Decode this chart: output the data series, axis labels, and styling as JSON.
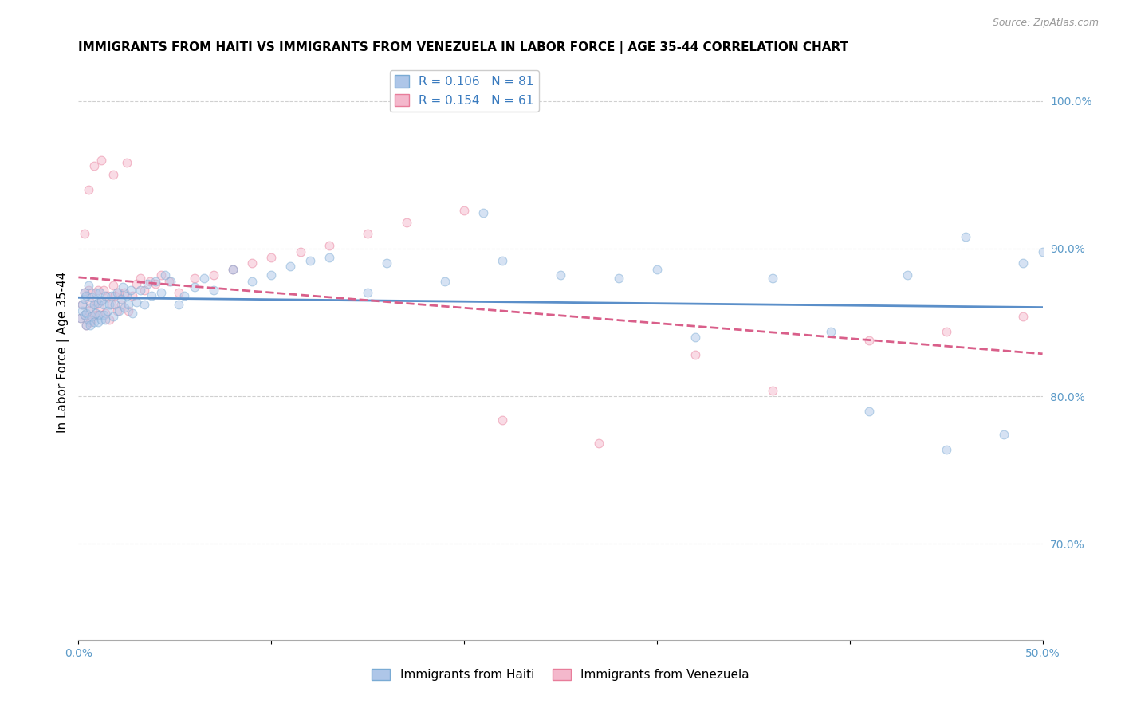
{
  "title": "IMMIGRANTS FROM HAITI VS IMMIGRANTS FROM VENEZUELA IN LABOR FORCE | AGE 35-44 CORRELATION CHART",
  "source": "Source: ZipAtlas.com",
  "ylabel": "In Labor Force | Age 35-44",
  "xlim": [
    0.0,
    0.5
  ],
  "ylim": [
    0.635,
    1.025
  ],
  "x_ticks": [
    0.0,
    0.1,
    0.2,
    0.3,
    0.4,
    0.5
  ],
  "x_tick_labels": [
    "0.0%",
    "",
    "",
    "",
    "",
    "50.0%"
  ],
  "y_ticks_right": [
    1.0,
    0.9,
    0.8,
    0.7
  ],
  "y_tick_labels_right": [
    "100.0%",
    "90.0%",
    "80.0%",
    "70.0%"
  ],
  "haiti_color": "#aec6e8",
  "haiti_edge_color": "#7aabd4",
  "venezuela_color": "#f4b8cc",
  "venezuela_edge_color": "#e87d9a",
  "line_haiti_color": "#5b8fc9",
  "line_venezuela_color": "#d95f8a",
  "R_haiti": 0.106,
  "N_haiti": 81,
  "R_venezuela": 0.154,
  "N_venezuela": 61,
  "legend_label_haiti": "Immigrants from Haiti",
  "legend_label_venezuela": "Immigrants from Venezuela",
  "haiti_x": [
    0.001,
    0.002,
    0.002,
    0.003,
    0.003,
    0.003,
    0.004,
    0.004,
    0.004,
    0.005,
    0.005,
    0.006,
    0.006,
    0.007,
    0.007,
    0.008,
    0.008,
    0.009,
    0.009,
    0.01,
    0.01,
    0.011,
    0.011,
    0.012,
    0.012,
    0.013,
    0.013,
    0.014,
    0.014,
    0.015,
    0.016,
    0.017,
    0.018,
    0.019,
    0.02,
    0.021,
    0.022,
    0.023,
    0.024,
    0.025,
    0.026,
    0.027,
    0.028,
    0.03,
    0.032,
    0.034,
    0.036,
    0.038,
    0.04,
    0.043,
    0.045,
    0.048,
    0.052,
    0.055,
    0.06,
    0.065,
    0.07,
    0.08,
    0.09,
    0.1,
    0.11,
    0.12,
    0.13,
    0.15,
    0.16,
    0.19,
    0.21,
    0.22,
    0.25,
    0.28,
    0.3,
    0.32,
    0.36,
    0.39,
    0.41,
    0.43,
    0.45,
    0.46,
    0.48,
    0.49,
    0.5
  ],
  "haiti_y": [
    0.853,
    0.858,
    0.862,
    0.855,
    0.866,
    0.87,
    0.848,
    0.856,
    0.868,
    0.852,
    0.875,
    0.848,
    0.86,
    0.854,
    0.867,
    0.85,
    0.862,
    0.856,
    0.87,
    0.85,
    0.863,
    0.855,
    0.87,
    0.852,
    0.865,
    0.855,
    0.862,
    0.852,
    0.868,
    0.858,
    0.862,
    0.868,
    0.854,
    0.862,
    0.87,
    0.858,
    0.866,
    0.874,
    0.86,
    0.868,
    0.862,
    0.872,
    0.856,
    0.864,
    0.872,
    0.862,
    0.876,
    0.868,
    0.878,
    0.87,
    0.882,
    0.878,
    0.862,
    0.868,
    0.874,
    0.88,
    0.872,
    0.886,
    0.878,
    0.882,
    0.888,
    0.892,
    0.894,
    0.87,
    0.89,
    0.878,
    0.924,
    0.892,
    0.882,
    0.88,
    0.886,
    0.84,
    0.88,
    0.844,
    0.79,
    0.882,
    0.764,
    0.908,
    0.774,
    0.89,
    0.898
  ],
  "venezuela_x": [
    0.001,
    0.002,
    0.003,
    0.003,
    0.004,
    0.005,
    0.005,
    0.006,
    0.006,
    0.007,
    0.007,
    0.008,
    0.009,
    0.01,
    0.01,
    0.011,
    0.012,
    0.013,
    0.014,
    0.015,
    0.016,
    0.017,
    0.018,
    0.019,
    0.02,
    0.021,
    0.022,
    0.024,
    0.026,
    0.028,
    0.03,
    0.032,
    0.034,
    0.037,
    0.04,
    0.043,
    0.047,
    0.052,
    0.06,
    0.07,
    0.08,
    0.09,
    0.1,
    0.115,
    0.13,
    0.15,
    0.17,
    0.2,
    0.22,
    0.27,
    0.32,
    0.36,
    0.41,
    0.45,
    0.49,
    0.003,
    0.005,
    0.008,
    0.012,
    0.018,
    0.025
  ],
  "venezuela_y": [
    0.853,
    0.862,
    0.855,
    0.87,
    0.848,
    0.858,
    0.872,
    0.85,
    0.864,
    0.852,
    0.87,
    0.855,
    0.862,
    0.855,
    0.872,
    0.86,
    0.865,
    0.872,
    0.856,
    0.868,
    0.852,
    0.862,
    0.875,
    0.868,
    0.858,
    0.87,
    0.862,
    0.87,
    0.858,
    0.868,
    0.876,
    0.88,
    0.872,
    0.878,
    0.876,
    0.882,
    0.878,
    0.87,
    0.88,
    0.882,
    0.886,
    0.89,
    0.894,
    0.898,
    0.902,
    0.91,
    0.918,
    0.926,
    0.784,
    0.768,
    0.828,
    0.804,
    0.838,
    0.844,
    0.854,
    0.91,
    0.94,
    0.956,
    0.96,
    0.95,
    0.958
  ],
  "title_fontsize": 11,
  "axis_label_fontsize": 11,
  "tick_fontsize": 10,
  "legend_fontsize": 11,
  "marker_size": 60,
  "alpha": 0.5,
  "background_color": "#ffffff",
  "grid_color": "#d0d0d0"
}
